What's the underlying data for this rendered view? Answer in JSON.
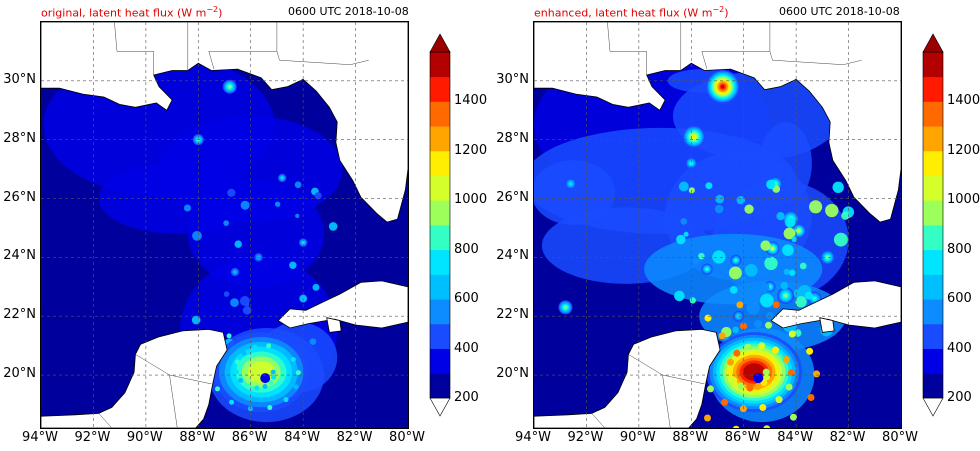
{
  "panels": [
    {
      "title_main": "original, latent heat flux (W m",
      "title_sup": "−2",
      "title_close": ")",
      "time": "0600 UTC 2018-10-08"
    },
    {
      "title_main": "enhanced, latent heat flux (W m",
      "title_sup": "−2",
      "title_close": ")",
      "time": "0600 UTC 2018-10-08"
    }
  ],
  "axes": {
    "lon_labels": [
      "94°W",
      "92°W",
      "90°W",
      "88°W",
      "86°W",
      "84°W",
      "82°W",
      "80°W"
    ],
    "lat_labels": [
      "30°N",
      "28°N",
      "26°N",
      "24°N",
      "22°N",
      "20°N"
    ],
    "lon_range": [
      -94,
      -80
    ],
    "lat_range": [
      18.2,
      32.0
    ]
  },
  "colorbar": {
    "labels": [
      "1400",
      "1200",
      "1000",
      "800",
      "600",
      "400",
      "200"
    ],
    "levels": [
      200,
      300,
      400,
      500,
      600,
      700,
      800,
      900,
      1000,
      1100,
      1200,
      1300,
      1400,
      1500
    ],
    "colors": [
      "#00009c",
      "#0000e6",
      "#1a4cff",
      "#0c8cff",
      "#00bfff",
      "#00e5ff",
      "#33ffc4",
      "#9cff5a",
      "#d4ff2a",
      "#ffee00",
      "#ffa500",
      "#ff6a00",
      "#ff1a00",
      "#b30000"
    ],
    "under_color": "#ffffff",
    "over_color": "#9a0000"
  },
  "map_colors": {
    "land": "#ffffff",
    "coast": "#000000",
    "grid": "#555555"
  }
}
